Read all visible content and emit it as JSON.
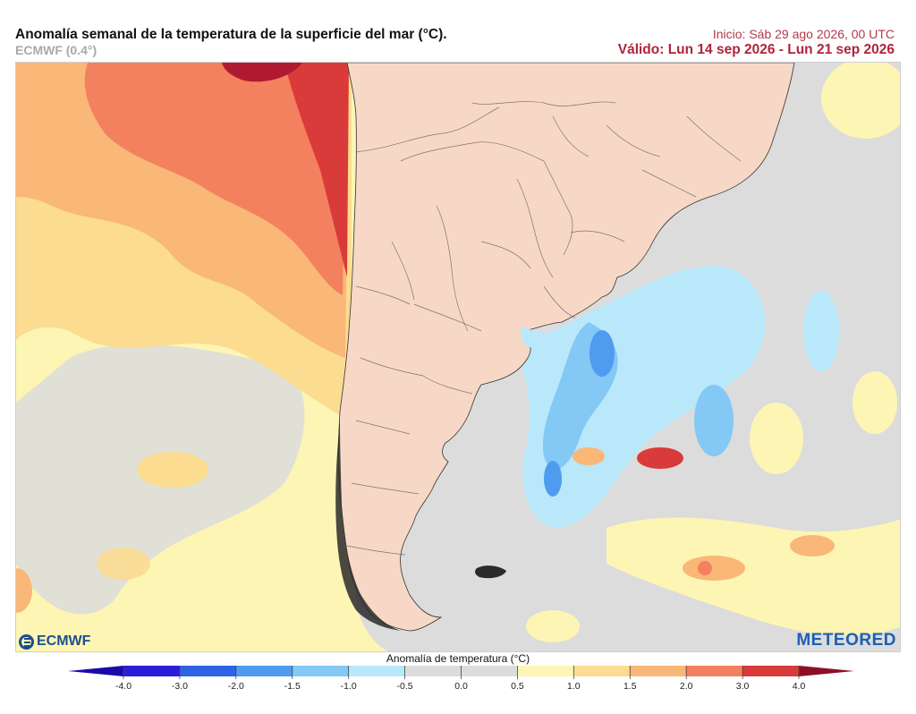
{
  "header": {
    "title": "Anomalía semanal de la temperatura de la superficie del mar (°C).",
    "subtitle": "ECMWF (0.4°)",
    "init": "Inicio: Sáb 29 ago 2026, 00 UTC",
    "valid": "Válido: Lun 14 sep 2026 - Lun 21 sep 2026"
  },
  "logos": {
    "left": "ECMWF",
    "right": "METEORED"
  },
  "colorbar": {
    "label": "Anomalía de temperatura (°C)",
    "ticks": [
      "-4.0",
      "-3.0",
      "-2.0",
      "-1.5",
      "-1.0",
      "-0.5",
      "0.0",
      "0.5",
      "1.0",
      "1.5",
      "2.0",
      "3.0",
      "4.0"
    ],
    "colors": [
      "#2a1fd6",
      "#2f63e6",
      "#4f9bf0",
      "#84c8f6",
      "#b8e8fa",
      "#dcdcdc",
      "#dcdcdc",
      "#fdf5b4",
      "#fbdc90",
      "#f9b778",
      "#f3805f",
      "#d93a3a"
    ],
    "end_low": "#1a0aa8",
    "end_high": "#8c0f28"
  },
  "map_colors": {
    "ocean_neutral": "#dcdcdc",
    "land": "#f7d8c6",
    "pale_yellow": "#fdf5b4",
    "yellow": "#fbdc90",
    "orange": "#f9b778",
    "red_orange": "#f3805f",
    "red": "#d93a3a",
    "dark_red": "#b01a30",
    "light_blue": "#b8e8fa",
    "blue": "#84c8f6",
    "mid_blue": "#4f9bf0"
  }
}
